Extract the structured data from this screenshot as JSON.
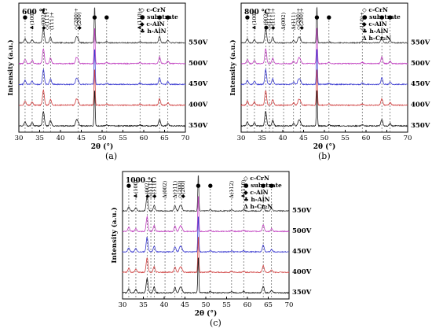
{
  "figure": {
    "captions": [
      "(a)",
      "(b)",
      "(c)"
    ]
  },
  "chart_data": [
    {
      "type": "line",
      "panel": "(a)",
      "temperature_label": "600 ℃",
      "xlabel": "2θ (°)",
      "ylabel": "Intensity (a.u.)",
      "xlim": [
        30,
        70
      ],
      "xticks": [
        30,
        35,
        40,
        45,
        50,
        55,
        60,
        65,
        70
      ],
      "grid": false,
      "legend_position": "top-right",
      "legend": [
        "◇ c-CrN",
        "● substrate",
        "◆ c-AlN",
        "♣ h-AlN"
      ],
      "series": [
        {
          "name": "550V",
          "color": "#3a3a3a"
        },
        {
          "name": "500V",
          "color": "#c040c0"
        },
        {
          "name": "450V",
          "color": "#3a3ad0"
        },
        {
          "name": "400V",
          "color": "#d04040"
        },
        {
          "name": "350V",
          "color": "#1a1a1a"
        }
      ],
      "peaks": [
        {
          "x": 31.5,
          "h": 1.0
        },
        {
          "x": 33.2,
          "h": 0.8
        },
        {
          "x": 35.9,
          "h": 3.6
        },
        {
          "x": 37.6,
          "h": 1.4
        },
        {
          "x": 43.8,
          "h": 1.3
        },
        {
          "x": 44.2,
          "h": 0.9
        },
        {
          "x": 48.2,
          "h": 9.0
        },
        {
          "x": 51.1,
          "h": 0.3
        },
        {
          "x": 59.1,
          "h": 0.3
        },
        {
          "x": 63.8,
          "h": 1.6
        },
        {
          "x": 65.8,
          "h": 0.6
        }
      ],
      "dashed_lines": [
        31.5,
        33.2,
        35.9,
        37.6,
        44.2,
        51.1,
        59.1,
        63.8,
        65.8
      ],
      "annotations": [
        {
          "x": 31.5,
          "text": "●"
        },
        {
          "x": 33.2,
          "text": "♣(100)"
        },
        {
          "x": 35.9,
          "text": "◆(002)♣"
        },
        {
          "x": 36.8,
          "text": "◇(111)"
        },
        {
          "x": 37.9,
          "text": "(111)+"
        },
        {
          "x": 43.8,
          "text": "◇(200)+"
        },
        {
          "x": 44.5,
          "text": "◆(200)"
        },
        {
          "x": 48.2,
          "text": "●"
        },
        {
          "x": 51.1,
          "text": "●"
        },
        {
          "x": 59.1,
          "text": "♣(110)+"
        },
        {
          "x": 63.8,
          "text": "●"
        },
        {
          "x": 65.8,
          "text": "●"
        }
      ]
    },
    {
      "type": "line",
      "panel": "(b)",
      "temperature_label": "800 ℃",
      "xlabel": "2θ (°)",
      "ylabel": "Intensity (a.u.)",
      "xlim": [
        30,
        70
      ],
      "xticks": [
        30,
        35,
        40,
        45,
        50,
        55,
        60,
        65,
        70
      ],
      "grid": false,
      "legend_position": "top-right",
      "legend": [
        "◇ c-CrN",
        "● substrate",
        "◆ c-AlN",
        "♣ h-AlN",
        "Δ h-Cr₂N"
      ],
      "series": [
        {
          "name": "550V",
          "color": "#3a3a3a"
        },
        {
          "name": "500V",
          "color": "#c040c0"
        },
        {
          "name": "450V",
          "color": "#3a3ad0"
        },
        {
          "name": "400V",
          "color": "#d04040"
        },
        {
          "name": "350V",
          "color": "#1a1a1a"
        }
      ],
      "peaks": [
        {
          "x": 31.5,
          "h": 1.0
        },
        {
          "x": 33.2,
          "h": 0.8
        },
        {
          "x": 35.9,
          "h": 3.6
        },
        {
          "x": 37.6,
          "h": 1.4
        },
        {
          "x": 42.6,
          "h": 0.6
        },
        {
          "x": 43.8,
          "h": 1.2
        },
        {
          "x": 44.2,
          "h": 0.9
        },
        {
          "x": 48.2,
          "h": 9.0
        },
        {
          "x": 51.1,
          "h": 0.3
        },
        {
          "x": 59.1,
          "h": 0.3
        },
        {
          "x": 63.8,
          "h": 1.6
        },
        {
          "x": 65.8,
          "h": 0.6
        }
      ],
      "dashed_lines": [
        31.5,
        33.2,
        35.9,
        36.8,
        37.6,
        40.2,
        42.6,
        44.2,
        51.1,
        59.1,
        63.8,
        65.8
      ],
      "annotations": [
        {
          "x": 31.5,
          "text": "●"
        },
        {
          "x": 33.2,
          "text": "♣(100)"
        },
        {
          "x": 35.9,
          "text": "●(002)"
        },
        {
          "x": 36.8,
          "text": "◇(111)+"
        },
        {
          "x": 37.6,
          "text": "◆(111)+"
        },
        {
          "x": 40.2,
          "text": "Δ(002)"
        },
        {
          "x": 42.6,
          "text": "Δ(111)"
        },
        {
          "x": 43.8,
          "text": "◇(200)+"
        },
        {
          "x": 44.5,
          "text": "◆(200)+"
        },
        {
          "x": 48.2,
          "text": "●"
        },
        {
          "x": 51.1,
          "text": "●"
        },
        {
          "x": 59.1,
          "text": "(110)+"
        },
        {
          "x": 63.8,
          "text": "●"
        },
        {
          "x": 65.8,
          "text": "●"
        }
      ]
    },
    {
      "type": "line",
      "panel": "(c)",
      "temperature_label": "1000 ℃",
      "xlabel": "2θ (°)",
      "ylabel": "Intensity (a.u.)",
      "xlim": [
        30,
        70
      ],
      "xticks": [
        30,
        35,
        40,
        45,
        50,
        55,
        60,
        65,
        70
      ],
      "grid": false,
      "legend_position": "top-right",
      "legend": [
        "◇ c-CrN",
        "● substrate",
        "◆ c-AlN",
        "♣ h-AlN",
        "Δ h-Cr₂N"
      ],
      "series": [
        {
          "name": "550V",
          "color": "#3a3a3a"
        },
        {
          "name": "500V",
          "color": "#c040c0"
        },
        {
          "name": "450V",
          "color": "#3a3ad0"
        },
        {
          "name": "400V",
          "color": "#d04040"
        },
        {
          "name": "350V",
          "color": "#1a1a1a"
        }
      ],
      "peaks": [
        {
          "x": 31.5,
          "h": 1.0
        },
        {
          "x": 33.2,
          "h": 0.8
        },
        {
          "x": 35.9,
          "h": 3.6
        },
        {
          "x": 37.6,
          "h": 1.4
        },
        {
          "x": 42.6,
          "h": 1.3
        },
        {
          "x": 43.8,
          "h": 1.1
        },
        {
          "x": 44.2,
          "h": 0.9
        },
        {
          "x": 48.2,
          "h": 9.0
        },
        {
          "x": 51.1,
          "h": 0.3
        },
        {
          "x": 56.2,
          "h": 0.25
        },
        {
          "x": 59.1,
          "h": 0.3
        },
        {
          "x": 63.8,
          "h": 1.6
        },
        {
          "x": 65.8,
          "h": 0.6
        }
      ],
      "dashed_lines": [
        31.5,
        33.2,
        35.9,
        36.8,
        37.6,
        40.2,
        42.6,
        44.2,
        51.1,
        56.2,
        59.1,
        63.8,
        65.8
      ],
      "annotations": [
        {
          "x": 31.5,
          "text": "●"
        },
        {
          "x": 33.2,
          "text": "♣(100)"
        },
        {
          "x": 35.9,
          "text": "◆(002)"
        },
        {
          "x": 36.8,
          "text": "◇(111)"
        },
        {
          "x": 37.6,
          "text": "◆(111)"
        },
        {
          "x": 40.2,
          "text": "Δ(002)"
        },
        {
          "x": 42.6,
          "text": "Δ(111)"
        },
        {
          "x": 43.8,
          "text": "◇(200)"
        },
        {
          "x": 44.5,
          "text": "◆(200)"
        },
        {
          "x": 48.2,
          "text": "●"
        },
        {
          "x": 51.1,
          "text": "●"
        },
        {
          "x": 56.2,
          "text": "Δ(112)"
        },
        {
          "x": 59.1,
          "text": "♣(110)"
        },
        {
          "x": 63.8,
          "text": "●"
        },
        {
          "x": 65.8,
          "text": "●"
        }
      ]
    }
  ]
}
